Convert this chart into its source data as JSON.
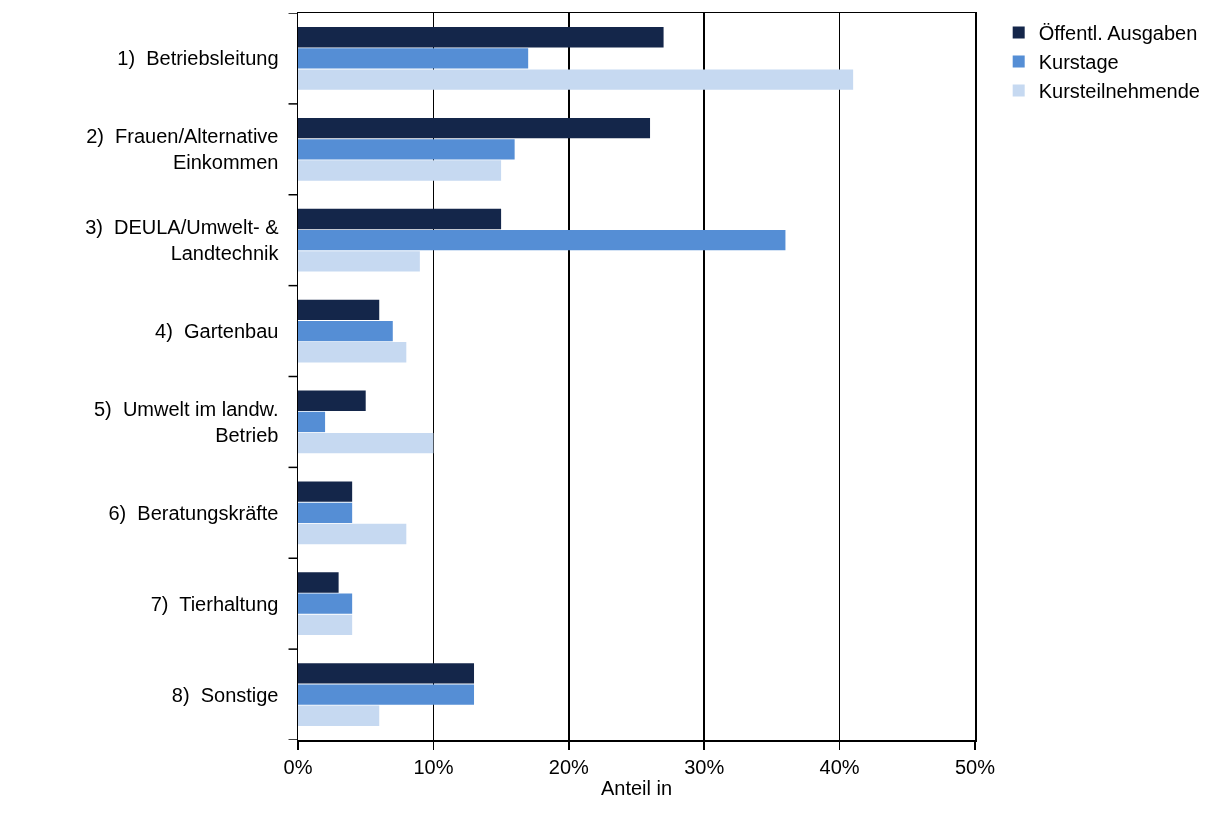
{
  "chart_data": {
    "type": "bar",
    "orientation": "horizontal",
    "categories": [
      "1)  Betriebsleitung",
      "2)  Frauen/Alternative\nEinkommen",
      "3)  DEULA/Umwelt- &\nLandtechnik",
      "4)  Gartenbau",
      "5)  Umwelt im landw.\nBetrieb",
      "6)  Beratungskräfte",
      "7)  Tierhaltung",
      "8)  Sonstige"
    ],
    "series": [
      {
        "name": "Öffentl. Ausgaben",
        "color": "#14264a",
        "values": [
          27,
          26,
          15,
          6,
          5,
          4,
          3,
          13
        ]
      },
      {
        "name": "Kurstage",
        "color": "#558ed5",
        "values": [
          17,
          16,
          36,
          7,
          2,
          4,
          4,
          13
        ]
      },
      {
        "name": "Kursteilnehmende",
        "color": "#c6d9f1",
        "values": [
          41,
          15,
          9,
          8,
          10,
          8,
          4,
          6
        ]
      }
    ],
    "xlabel": "Anteil in",
    "xlim": [
      0,
      50
    ],
    "xticks": [
      {
        "value": 0,
        "label": "0%"
      },
      {
        "value": 10,
        "label": "10%"
      },
      {
        "value": 20,
        "label": "20%"
      },
      {
        "value": 30,
        "label": "30%"
      },
      {
        "value": 40,
        "label": "40%"
      },
      {
        "value": 50,
        "label": "50%"
      }
    ],
    "grid": "x",
    "legend": "top right"
  }
}
